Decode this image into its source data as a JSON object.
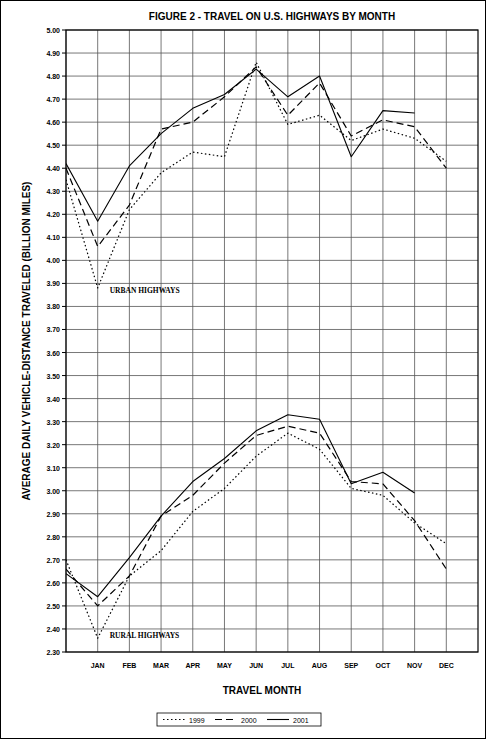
{
  "chart_data": {
    "type": "line",
    "title": "FIGURE 2 - TRAVEL ON U.S. HIGHWAYS BY MONTH",
    "x_label": "TRAVEL MONTH",
    "y_label": "AVERAGE DAILY VEHICLE-DISTANCE TRAVELED (BILLION MILES)",
    "categories": [
      null,
      "JAN",
      "FEB",
      "MAR",
      "APR",
      "MAY",
      "JUN",
      "JUL",
      "AUG",
      "SEP",
      "OCT",
      "NOV",
      "DEC"
    ],
    "series": [
      {
        "name": "1999",
        "color": "#000000",
        "line_style": "dotted",
        "values": [
          4.35,
          3.88,
          4.22,
          4.38,
          4.47,
          4.45,
          4.86,
          4.59,
          4.63,
          4.52,
          4.57,
          4.53,
          4.43
        ]
      },
      {
        "name": "2000",
        "color": "#000000",
        "line_style": "dashed",
        "values": [
          4.4,
          4.06,
          4.24,
          4.57,
          4.6,
          4.71,
          4.84,
          4.63,
          4.77,
          4.54,
          4.61,
          4.58,
          4.4
        ]
      },
      {
        "name": "2001",
        "color": "#000000",
        "line_style": "solid",
        "values": [
          4.42,
          4.17,
          4.41,
          4.55,
          4.66,
          4.72,
          4.83,
          4.71,
          4.8,
          4.45,
          4.65,
          4.64,
          null
        ]
      },
      {
        "name": "1999",
        "color": "#000000",
        "line_style": "dotted",
        "values": [
          2.7,
          2.36,
          2.63,
          2.74,
          2.91,
          3.01,
          3.15,
          3.25,
          3.18,
          3.01,
          2.98,
          2.86,
          2.77
        ]
      },
      {
        "name": "2000",
        "color": "#000000",
        "line_style": "dashed",
        "values": [
          2.66,
          2.5,
          2.63,
          2.89,
          2.98,
          3.12,
          3.24,
          3.28,
          3.25,
          3.04,
          3.03,
          2.87,
          2.66
        ]
      },
      {
        "name": "2001",
        "color": "#000000",
        "line_style": "solid",
        "values": [
          2.64,
          2.54,
          2.71,
          2.89,
          3.04,
          3.14,
          3.26,
          3.33,
          3.31,
          3.03,
          3.08,
          2.99,
          null
        ]
      }
    ],
    "annotations": [
      {
        "text": "URBAN HIGHWAYS",
        "x": 1,
        "y": 3.86
      },
      {
        "text": "RURAL HIGHWAYS",
        "x": 1,
        "y": 2.36
      }
    ],
    "ylim": [
      2.3,
      5.0
    ],
    "yticks": [
      {
        "value": 2.3,
        "label": "2.30"
      },
      {
        "value": 2.4,
        "label": "2.40"
      },
      {
        "value": 2.5,
        "label": "2.50"
      },
      {
        "value": 2.6,
        "label": "2.60"
      },
      {
        "value": 2.7,
        "label": "2.70"
      },
      {
        "value": 2.8,
        "label": "2.80"
      },
      {
        "value": 2.9,
        "label": "2.90"
      },
      {
        "value": 3.0,
        "label": "3.00"
      },
      {
        "value": 3.1,
        "label": "3.10"
      },
      {
        "value": 3.2,
        "label": "3.20"
      },
      {
        "value": 3.3,
        "label": "3.30"
      },
      {
        "value": 3.4,
        "label": "3.40"
      },
      {
        "value": 3.5,
        "label": "3.50"
      },
      {
        "value": 3.6,
        "label": "3.60"
      },
      {
        "value": 3.7,
        "label": "3.70"
      },
      {
        "value": 3.8,
        "label": "3.80"
      },
      {
        "value": 3.9,
        "label": "3.90"
      },
      {
        "value": 4.0,
        "label": "4.00"
      },
      {
        "value": 4.1,
        "label": "4.10"
      },
      {
        "value": 4.2,
        "label": "4.20"
      },
      {
        "value": 4.3,
        "label": "4.30"
      },
      {
        "value": 4.4,
        "label": "4.40"
      },
      {
        "value": 4.5,
        "label": "4.50"
      },
      {
        "value": 4.6,
        "label": "4.60"
      },
      {
        "value": 4.7,
        "label": "4.70"
      },
      {
        "value": 4.8,
        "label": "4.80"
      },
      {
        "value": 4.9,
        "label": "4.90"
      },
      {
        "value": 5.0,
        "label": "5.00"
      }
    ],
    "grid": true,
    "legend": "bottom"
  }
}
